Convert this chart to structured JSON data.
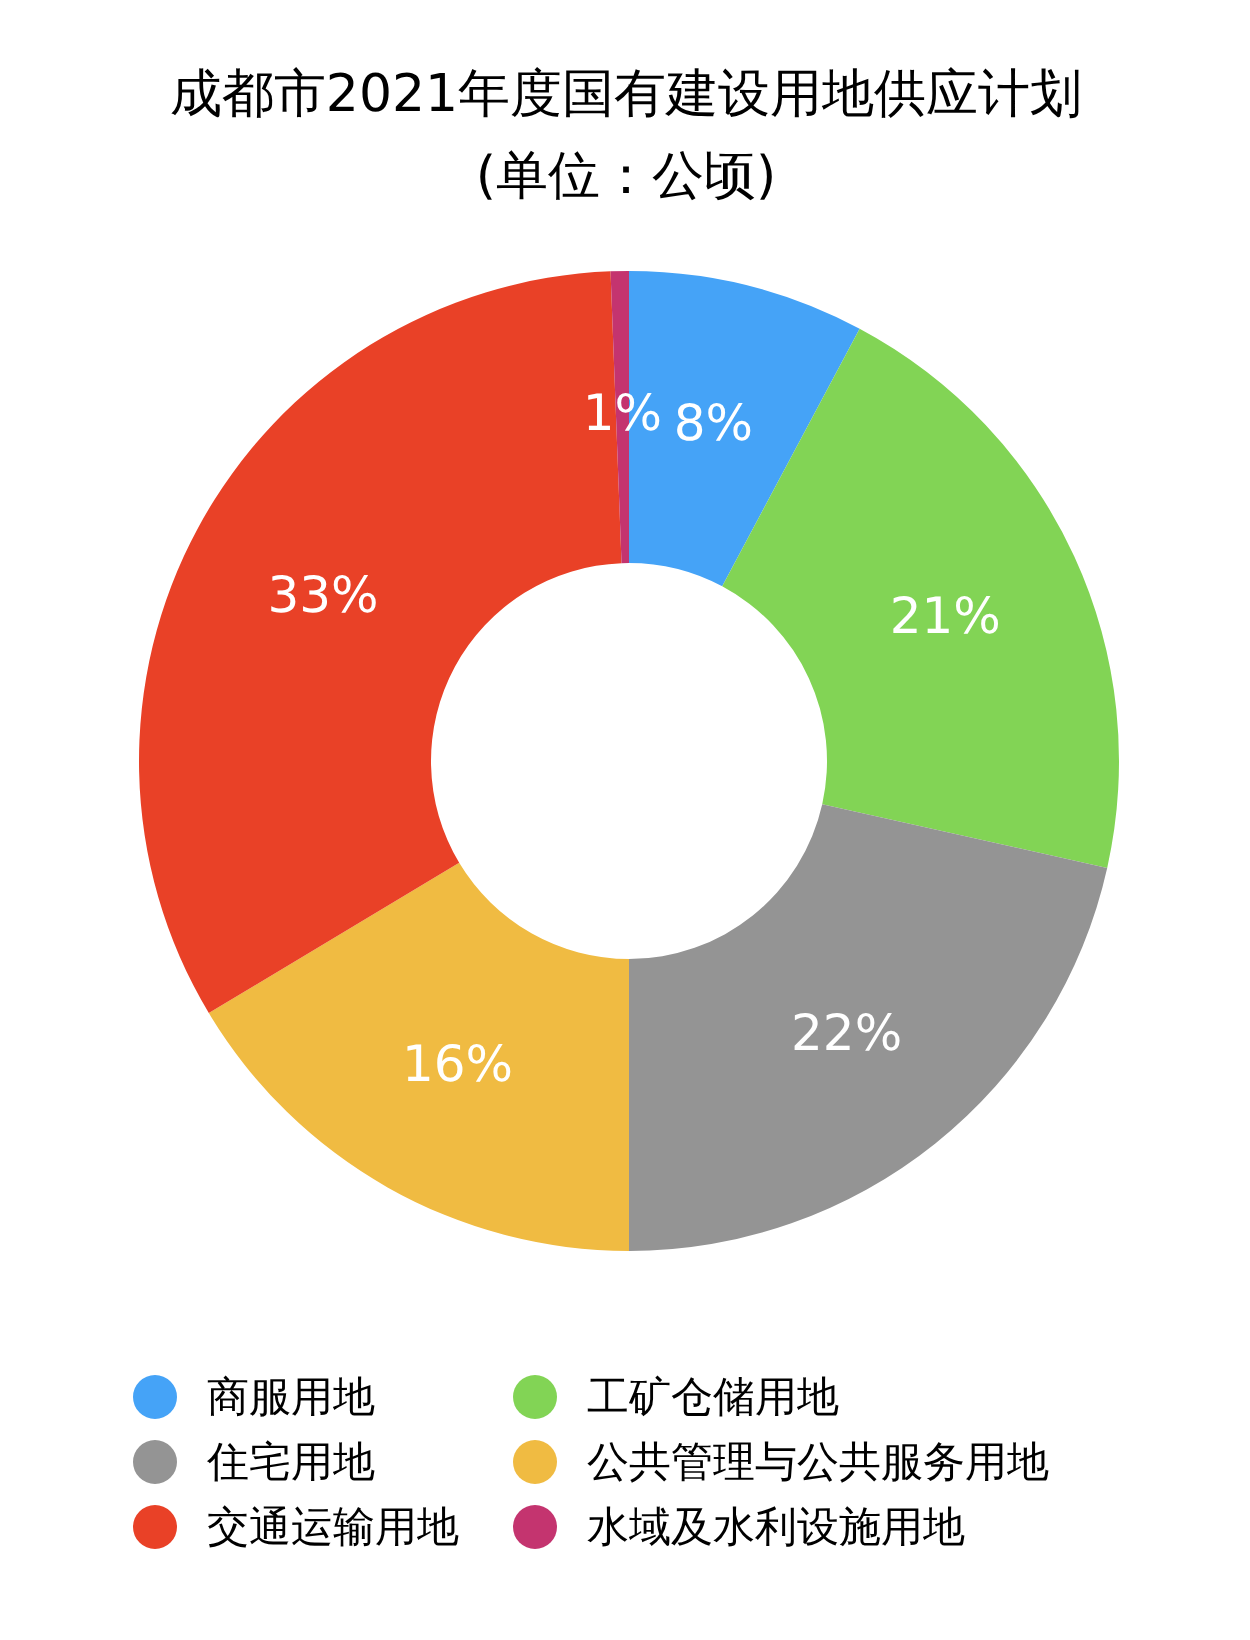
{
  "chart_data": {
    "type": "donut",
    "title": "成都市2021年度国有建设用地供应计划",
    "subtitle": "(单位：公顷)",
    "categories": [
      "商服用地",
      "工矿仓储用地",
      "住宅用地",
      "公共管理与公共服务用地",
      "交通运输用地",
      "水域及水利设施用地"
    ],
    "values": [
      7.8,
      20.7,
      21.5,
      16.4,
      33.0,
      0.6
    ],
    "value_labels": [
      "8%",
      "21%",
      "22%",
      "16%",
      "33%",
      "1%"
    ],
    "colors": [
      "#45a3f7",
      "#82d455",
      "#949494",
      "#f0bb42",
      "#e94127",
      "#c4346f"
    ],
    "legend": "bottom"
  }
}
